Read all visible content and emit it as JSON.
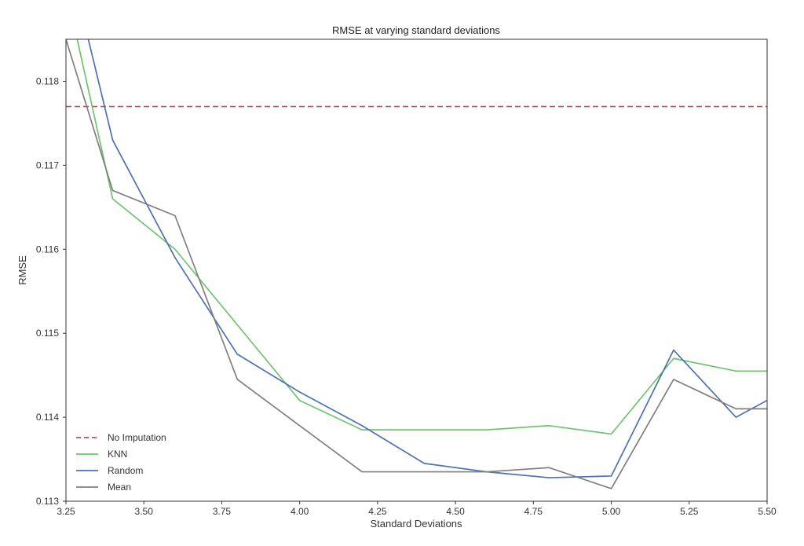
{
  "chart_data": {
    "type": "line",
    "title": "RMSE at varying standard deviations",
    "xlabel": "Standard Deviations",
    "ylabel": "RMSE",
    "xlim": [
      3.25,
      5.5
    ],
    "ylim": [
      0.113,
      0.1185
    ],
    "xticks": [
      "3.25",
      "3.50",
      "3.75",
      "4.00",
      "4.25",
      "4.50",
      "4.75",
      "5.00",
      "5.25",
      "5.50"
    ],
    "xtick_values": [
      3.25,
      3.5,
      3.75,
      4.0,
      4.25,
      4.5,
      4.75,
      5.0,
      5.25,
      5.5
    ],
    "yticks": [
      "0.113",
      "0.114",
      "0.115",
      "0.116",
      "0.117",
      "0.118"
    ],
    "ytick_values": [
      0.113,
      0.114,
      0.115,
      0.116,
      0.117,
      0.118
    ],
    "grid": false,
    "legend_position": "bottom-left",
    "x": [
      3.25,
      3.4,
      3.6,
      3.8,
      4.0,
      4.2,
      4.4,
      4.6,
      4.8,
      5.0,
      5.2,
      5.4,
      5.5
    ],
    "series": [
      {
        "name": "No Imputation",
        "style": "dashed",
        "color": "#c44e52",
        "values": [
          0.1177,
          0.1177,
          0.1177,
          0.1177,
          0.1177,
          0.1177,
          0.1177,
          0.1177,
          0.1177,
          0.1177,
          0.1177,
          0.1177,
          0.1177
        ]
      },
      {
        "name": "KNN",
        "style": "solid",
        "color": "#6fc36f",
        "values": [
          0.1191,
          0.1166,
          0.116,
          0.1151,
          0.1142,
          0.11385,
          0.11385,
          0.11385,
          0.1139,
          0.1138,
          0.1147,
          0.11455,
          0.11455
        ]
      },
      {
        "name": "Random",
        "style": "solid",
        "color": "#4c72b0",
        "values": [
          0.1196,
          0.1173,
          0.1159,
          0.11475,
          0.1143,
          0.1139,
          0.11345,
          0.11335,
          0.11328,
          0.1133,
          0.1148,
          0.114,
          0.1142
        ]
      },
      {
        "name": "Mean",
        "style": "solid",
        "color": "#7f7f7f",
        "values": [
          0.1185,
          0.1167,
          0.1164,
          0.11445,
          0.1139,
          0.11335,
          0.11335,
          0.11335,
          0.1134,
          0.11315,
          0.11445,
          0.1141,
          0.1141
        ]
      }
    ]
  }
}
